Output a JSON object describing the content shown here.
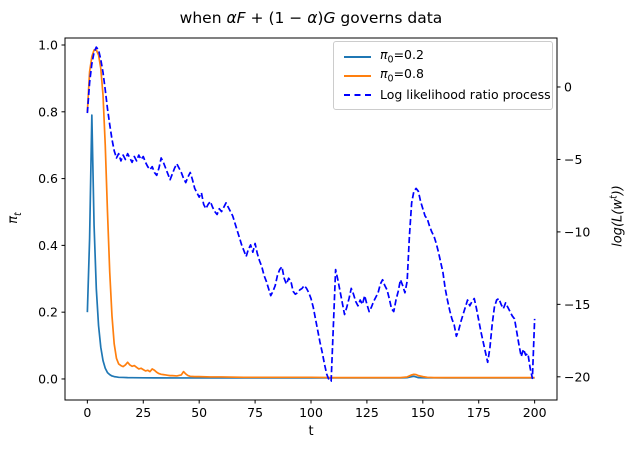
{
  "title_parts": [
    {
      "t": "when "
    },
    {
      "t": "αF",
      "i": true
    },
    {
      "t": " + (1 − "
    },
    {
      "t": "α",
      "i": true
    },
    {
      "t": ")"
    },
    {
      "t": "G",
      "i": true
    },
    {
      "t": " governs data"
    }
  ],
  "axes": {
    "x": {
      "label": "t",
      "tick_labels": [
        "0",
        "25",
        "50",
        "75",
        "100",
        "125",
        "150",
        "175",
        "200"
      ]
    },
    "y_left": {
      "label_parts": [
        {
          "t": "π",
          "i": true
        },
        {
          "t": "t",
          "i": true,
          "sub": true
        }
      ],
      "tick_labels": [
        "0.0",
        "0.2",
        "0.4",
        "0.6",
        "0.8",
        "1.0"
      ]
    },
    "y_right": {
      "label_parts": [
        {
          "t": "log",
          "i": true
        },
        {
          "t": "(",
          "i": true
        },
        {
          "t": "L",
          "i": true
        },
        {
          "t": "(",
          "i": true
        },
        {
          "t": "w",
          "i": true
        },
        {
          "t": "t",
          "i": true,
          "sup": true
        },
        {
          "t": "))",
          "i": true
        }
      ],
      "tick_labels": [
        "0",
        "−5",
        "−10",
        "−15",
        "−20"
      ]
    }
  },
  "legend": {
    "items": [
      {
        "label_parts": [
          {
            "t": "π",
            "i": true
          },
          {
            "t": "0",
            "sub": true
          },
          {
            "t": "=0.2"
          }
        ],
        "color": "#1f77b4",
        "dash": false
      },
      {
        "label_parts": [
          {
            "t": "π",
            "i": true
          },
          {
            "t": "0",
            "sub": true
          },
          {
            "t": "=0.8"
          }
        ],
        "color": "#ff7f0e",
        "dash": false
      },
      {
        "label_parts": [
          {
            "t": "Log likelihood ratio process"
          }
        ],
        "color": "#0000ff",
        "dash": true
      }
    ]
  },
  "chart_data": {
    "type": "line",
    "title": "when αF + (1 − α)G governs data",
    "xlabel": "t",
    "ylabel_left": "π_t",
    "ylabel_right": "log(L(w^t))",
    "xlim": [
      -10,
      210
    ],
    "ylim_left": [
      -0.063,
      1.021
    ],
    "ylim_right": [
      -21.6,
      3.38
    ],
    "x_ticks": [
      0,
      25,
      50,
      75,
      100,
      125,
      150,
      175,
      200
    ],
    "y_ticks_left": [
      0.0,
      0.2,
      0.4,
      0.6,
      0.8,
      1.0
    ],
    "y_ticks_right": [
      0,
      -5,
      -10,
      -15,
      -20
    ],
    "grid": false,
    "legend_position": "upper right",
    "series": [
      {
        "name": "π0=0.2",
        "axis": "left",
        "color": "#1f77b4",
        "style": "solid",
        "x": [
          0,
          1,
          2,
          3,
          4,
          5,
          6,
          7,
          8,
          9,
          10,
          11,
          12,
          13,
          14,
          16,
          18,
          20,
          25,
          30,
          40,
          50,
          75,
          100,
          140,
          143,
          145,
          146,
          147,
          148,
          150,
          160,
          175,
          200
        ],
        "y": [
          0.2,
          0.42,
          0.79,
          0.46,
          0.27,
          0.16,
          0.095,
          0.055,
          0.032,
          0.019,
          0.013,
          0.009,
          0.007,
          0.006,
          0.005,
          0.0045,
          0.004,
          0.0038,
          0.0035,
          0.0033,
          0.003,
          0.003,
          0.003,
          0.003,
          0.003,
          0.004,
          0.007,
          0.008,
          0.006,
          0.004,
          0.0035,
          0.003,
          0.003,
          0.003
        ]
      },
      {
        "name": "π0=0.8",
        "axis": "left",
        "color": "#ff7f0e",
        "style": "solid",
        "x": [
          0,
          1,
          2,
          3,
          4,
          5,
          6,
          7,
          8,
          9,
          10,
          11,
          12,
          13,
          14,
          15,
          16,
          17,
          18,
          19,
          20,
          21,
          22,
          23,
          24,
          25,
          26,
          27,
          28,
          29,
          30,
          31,
          32,
          33,
          34,
          35,
          36,
          37,
          38,
          40,
          42,
          43,
          44,
          45,
          46,
          48,
          50,
          55,
          60,
          70,
          80,
          90,
          100,
          110,
          120,
          130,
          140,
          143,
          145,
          146,
          147,
          148,
          150,
          152,
          155,
          160,
          170,
          180,
          190,
          200
        ],
        "y": [
          0.8,
          0.92,
          0.965,
          0.985,
          0.985,
          0.97,
          0.93,
          0.85,
          0.7,
          0.5,
          0.32,
          0.19,
          0.105,
          0.062,
          0.045,
          0.04,
          0.037,
          0.042,
          0.05,
          0.042,
          0.038,
          0.04,
          0.035,
          0.03,
          0.032,
          0.028,
          0.024,
          0.026,
          0.022,
          0.03,
          0.026,
          0.02,
          0.016,
          0.014,
          0.013,
          0.012,
          0.011,
          0.01,
          0.01,
          0.009,
          0.012,
          0.022,
          0.015,
          0.01,
          0.008,
          0.007,
          0.007,
          0.006,
          0.006,
          0.005,
          0.005,
          0.005,
          0.005,
          0.004,
          0.004,
          0.004,
          0.004,
          0.006,
          0.012,
          0.014,
          0.013,
          0.01,
          0.007,
          0.005,
          0.004,
          0.004,
          0.004,
          0.004,
          0.004,
          0.004
        ]
      },
      {
        "name": "Log likelihood ratio process",
        "axis": "right",
        "color": "#0000ff",
        "style": "dashed",
        "x_start": 0,
        "x_step": 1,
        "y": [
          -1.8,
          0.3,
          1.6,
          2.4,
          2.75,
          2.55,
          1.9,
          1.0,
          -0.2,
          -1.5,
          -2.6,
          -3.6,
          -4.4,
          -4.9,
          -4.6,
          -5.1,
          -4.7,
          -5.0,
          -4.6,
          -4.9,
          -5.2,
          -4.8,
          -5.1,
          -4.7,
          -5.0,
          -4.8,
          -5.2,
          -5.5,
          -5.7,
          -5.5,
          -5.9,
          -6.1,
          -5.6,
          -4.9,
          -5.2,
          -5.6,
          -6.0,
          -6.4,
          -6.0,
          -5.6,
          -5.3,
          -5.6,
          -5.9,
          -6.3,
          -6.6,
          -6.2,
          -5.9,
          -6.4,
          -7.0,
          -7.3,
          -7.6,
          -7.3,
          -8.1,
          -8.4,
          -8.1,
          -7.9,
          -8.3,
          -8.6,
          -8.8,
          -8.4,
          -8.6,
          -8.3,
          -8.0,
          -8.3,
          -8.6,
          -8.9,
          -9.4,
          -9.9,
          -10.4,
          -10.9,
          -11.3,
          -11.7,
          -11.2,
          -10.9,
          -11.4,
          -10.8,
          -11.5,
          -12.0,
          -12.4,
          -13.0,
          -13.4,
          -13.9,
          -14.4,
          -14.1,
          -13.7,
          -13.0,
          -12.6,
          -12.4,
          -13.2,
          -13.6,
          -13.2,
          -13.4,
          -14.1,
          -14.3,
          -14.2,
          -14.0,
          -13.9,
          -13.7,
          -13.9,
          -14.2,
          -14.6,
          -15.2,
          -16.0,
          -16.8,
          -17.6,
          -18.3,
          -19.1,
          -19.8,
          -20.2,
          -20.3,
          -16.5,
          -12.6,
          -13.3,
          -14.1,
          -14.9,
          -15.7,
          -15.2,
          -14.6,
          -13.9,
          -14.3,
          -14.8,
          -15.1,
          -14.7,
          -15.0,
          -14.4,
          -15.0,
          -15.5,
          -15.2,
          -14.8,
          -14.5,
          -14.2,
          -13.6,
          -13.3,
          -13.7,
          -14.0,
          -14.6,
          -15.3,
          -15.5,
          -14.7,
          -14.1,
          -13.3,
          -13.7,
          -14.2,
          -13.4,
          -10.3,
          -8.0,
          -7.2,
          -7.0,
          -7.2,
          -7.9,
          -8.4,
          -8.9,
          -9.1,
          -9.6,
          -10.0,
          -10.3,
          -10.8,
          -11.4,
          -12.1,
          -12.8,
          -13.9,
          -14.7,
          -15.4,
          -16.0,
          -16.4,
          -17.2,
          -16.8,
          -16.2,
          -15.7,
          -15.2,
          -14.7,
          -15.1,
          -14.8,
          -14.6,
          -15.3,
          -16.1,
          -16.9,
          -17.6,
          -18.3,
          -19.0,
          -18.0,
          -16.4,
          -15.2,
          -14.7,
          -14.6,
          -15.0,
          -15.3,
          -14.9,
          -15.2,
          -15.5,
          -15.8,
          -16.0,
          -16.9,
          -17.8,
          -18.6,
          -18.1,
          -18.5,
          -18.4,
          -19.4,
          -20.1,
          -16.0
        ]
      }
    ]
  }
}
